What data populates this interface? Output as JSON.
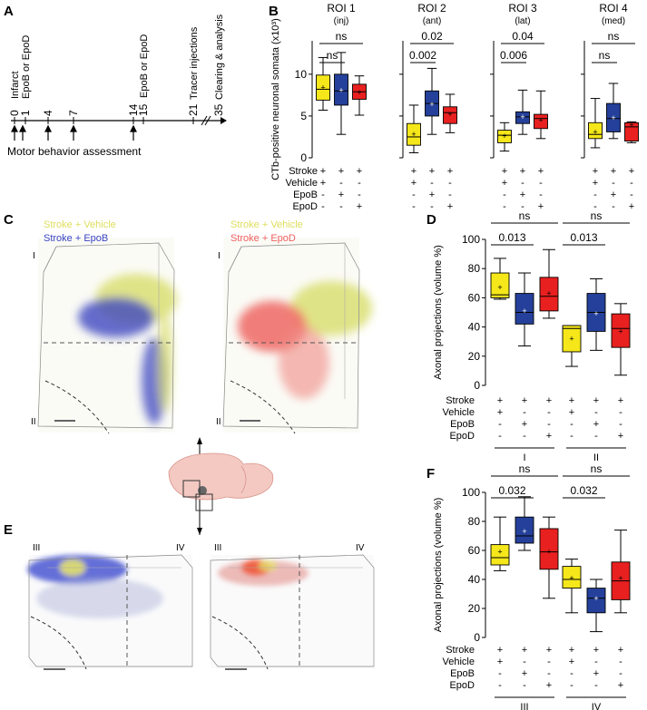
{
  "panels": {
    "A": "A",
    "B": "B",
    "C": "C",
    "D": "D",
    "E": "E",
    "F": "F"
  },
  "timeline": {
    "events": [
      {
        "day": "0",
        "label": "Infarct"
      },
      {
        "day": "1",
        "label": "EpoB or EpoD"
      },
      {
        "day": "4",
        "label": ""
      },
      {
        "day": "7",
        "label": ""
      },
      {
        "day": "14",
        "label": ""
      },
      {
        "day": "15",
        "label": "EpoB or EpoD"
      },
      {
        "day": "21",
        "label": "Tracer injections"
      },
      {
        "day": "35",
        "label": "Clearing & analysis"
      }
    ],
    "assessment_label": "Motor behavior assessment"
  },
  "colors": {
    "vehicle": "#f5e71a",
    "epob": "#24409a",
    "epod": "#e8201f",
    "epod_light": "#f4502f"
  },
  "conditions": {
    "row_labels": [
      "Stroke",
      "Vehicle",
      "EpoB",
      "EpoD"
    ],
    "signs": [
      [
        "+",
        "+",
        "+"
      ],
      [
        "+",
        "-",
        "-"
      ],
      [
        "-",
        "+",
        "-"
      ],
      [
        "-",
        "-",
        "+"
      ]
    ]
  },
  "panel_c": {
    "left_legend": [
      "Stroke + Vehicle",
      "Stroke + EpoB"
    ],
    "right_legend": [
      "Stroke + Vehicle",
      "Stroke + EpoD"
    ],
    "region_labels": [
      "I",
      "II"
    ]
  },
  "panel_e": {
    "region_labels": [
      "III",
      "IV"
    ]
  },
  "chart_data": [
    {
      "panel": "B",
      "type": "box",
      "ylabel": "CTb-positive neuronal somata (x10³)",
      "ylim": [
        0,
        14
      ],
      "yticks": [
        0,
        5,
        10
      ],
      "groups": [
        {
          "title": "ROI 1",
          "subtitle": "(inj)",
          "boxes": [
            {
              "series": "Vehicle",
              "min": 5.7,
              "q1": 6.9,
              "median": 8.2,
              "q3": 9.9,
              "max": 12.0,
              "mean": 8.4
            },
            {
              "series": "EpoB",
              "min": 2.8,
              "q1": 6.3,
              "median": 8.0,
              "q3": 10.0,
              "max": 12.6,
              "mean": 8.1
            },
            {
              "series": "EpoD",
              "min": 5.1,
              "q1": 7.0,
              "median": 7.9,
              "q3": 8.8,
              "max": 9.8,
              "mean": 7.8
            }
          ],
          "brackets": [
            {
              "from": 0,
              "to": 2,
              "label": "ns"
            },
            {
              "from": 0,
              "to": 1,
              "label": "ns"
            }
          ]
        },
        {
          "title": "ROI 2",
          "subtitle": "(ant)",
          "boxes": [
            {
              "series": "Vehicle",
              "min": 0.6,
              "q1": 1.5,
              "median": 2.5,
              "q3": 4.1,
              "max": 6.3,
              "mean": 2.8
            },
            {
              "series": "EpoB",
              "min": 2.8,
              "q1": 5.0,
              "median": 6.5,
              "q3": 8.0,
              "max": 10.7,
              "mean": 6.4
            },
            {
              "series": "EpoD",
              "min": 3.0,
              "q1": 4.1,
              "median": 5.4,
              "q3": 6.1,
              "max": 7.6,
              "mean": 5.2
            }
          ],
          "brackets": [
            {
              "from": 0,
              "to": 2,
              "label": "0.02"
            },
            {
              "from": 0,
              "to": 1,
              "label": "0.002"
            }
          ]
        },
        {
          "title": "ROI 3",
          "subtitle": "(lat)",
          "boxes": [
            {
              "series": "Vehicle",
              "min": 0.8,
              "q1": 1.8,
              "median": 2.7,
              "q3": 3.3,
              "max": 4.2,
              "mean": 2.6
            },
            {
              "series": "EpoB",
              "min": 2.8,
              "q1": 4.1,
              "median": 4.9,
              "q3": 5.5,
              "max": 8.1,
              "mean": 4.9
            },
            {
              "series": "EpoD",
              "min": 2.3,
              "q1": 3.5,
              "median": 4.7,
              "q3": 5.2,
              "max": 8.0,
              "mean": 4.5
            }
          ],
          "brackets": [
            {
              "from": 0,
              "to": 2,
              "label": "0.04"
            },
            {
              "from": 0,
              "to": 1,
              "label": "0.006"
            }
          ]
        },
        {
          "title": "ROI 4",
          "subtitle": "(med)",
          "boxes": [
            {
              "series": "Vehicle",
              "min": 1.2,
              "q1": 2.3,
              "median": 2.8,
              "q3": 4.2,
              "max": 7.1,
              "mean": 3.1
            },
            {
              "series": "EpoB",
              "min": 2.3,
              "q1": 3.1,
              "median": 4.7,
              "q3": 6.5,
              "max": 8.9,
              "mean": 4.8
            },
            {
              "series": "EpoD",
              "min": 1.8,
              "q1": 2.0,
              "median": 3.7,
              "q3": 4.2,
              "max": 4.3,
              "mean": 3.9
            }
          ],
          "brackets": [
            {
              "from": 0,
              "to": 2,
              "label": "ns"
            },
            {
              "from": 0,
              "to": 1,
              "label": "ns"
            }
          ]
        }
      ]
    },
    {
      "panel": "D",
      "type": "box",
      "ylabel": "Axonal projections (volume %)",
      "ylim": [
        0,
        100
      ],
      "yticks": [
        0,
        20,
        40,
        60,
        80,
        100
      ],
      "region_labels": [
        "I",
        "II"
      ],
      "boxes": [
        {
          "series": "Vehicle",
          "region": "I",
          "min": 59.0,
          "q1": 60.0,
          "median": 62.0,
          "q3": 77.0,
          "max": 87.0,
          "mean": 67.0
        },
        {
          "series": "EpoB",
          "region": "I",
          "min": 27.0,
          "q1": 42.0,
          "median": 50.0,
          "q3": 63.0,
          "max": 77.0,
          "mean": 51.0
        },
        {
          "series": "EpoD",
          "region": "I",
          "min": 46.0,
          "q1": 51.0,
          "median": 61.0,
          "q3": 74.0,
          "max": 93.0,
          "mean": 63.0
        },
        {
          "series": "Vehicle",
          "region": "II",
          "min": 13.0,
          "q1": 23.0,
          "median": 39.0,
          "q3": 41.0,
          "max": 41.0,
          "mean": 32.0
        },
        {
          "series": "EpoB",
          "region": "II",
          "min": 24.0,
          "q1": 37.0,
          "median": 50.0,
          "q3": 63.0,
          "max": 73.0,
          "mean": 49.0
        },
        {
          "series": "EpoD",
          "region": "II",
          "min": 7.0,
          "q1": 26.0,
          "median": 39.0,
          "q3": 49.0,
          "max": 56.0,
          "mean": 37.0
        }
      ],
      "brackets": [
        {
          "from": 0,
          "to": 2,
          "label": "ns"
        },
        {
          "from": 0,
          "to": 1,
          "label": "0.013"
        },
        {
          "from": 3,
          "to": 5,
          "label": "ns"
        },
        {
          "from": 3,
          "to": 4,
          "label": "0.013"
        }
      ]
    },
    {
      "panel": "F",
      "type": "box",
      "ylabel": "Axonal projections (volume %)",
      "ylim": [
        0,
        100
      ],
      "yticks": [
        0,
        20,
        40,
        60,
        80,
        100
      ],
      "region_labels": [
        "III",
        "IV"
      ],
      "boxes": [
        {
          "series": "Vehicle",
          "region": "III",
          "min": 46.0,
          "q1": 50.0,
          "median": 55.0,
          "q3": 64.0,
          "max": 83.0,
          "mean": 59.0
        },
        {
          "series": "EpoB",
          "region": "III",
          "min": 60.0,
          "q1": 65.0,
          "median": 70.0,
          "q3": 83.0,
          "max": 97.0,
          "mean": 73.0
        },
        {
          "series": "EpoD",
          "region": "III",
          "min": 27.0,
          "q1": 47.0,
          "median": 59.0,
          "q3": 75.0,
          "max": 83.0,
          "mean": 59.0
        },
        {
          "series": "Vehicle",
          "region": "IV",
          "min": 17.0,
          "q1": 34.0,
          "median": 40.0,
          "q3": 49.0,
          "max": 54.0,
          "mean": 41.0
        },
        {
          "series": "EpoB",
          "region": "IV",
          "min": 4.0,
          "q1": 17.0,
          "median": 27.0,
          "q3": 34.0,
          "max": 40.0,
          "mean": 27.0
        },
        {
          "series": "EpoD",
          "region": "IV",
          "min": 17.0,
          "q1": 26.0,
          "median": 39.0,
          "q3": 52.0,
          "max": 74.0,
          "mean": 41.0
        }
      ],
      "brackets": [
        {
          "from": 0,
          "to": 2,
          "label": "ns"
        },
        {
          "from": 0,
          "to": 1,
          "label": "0.032"
        },
        {
          "from": 3,
          "to": 5,
          "label": "ns"
        },
        {
          "from": 3,
          "to": 4,
          "label": "0.032"
        }
      ]
    }
  ]
}
